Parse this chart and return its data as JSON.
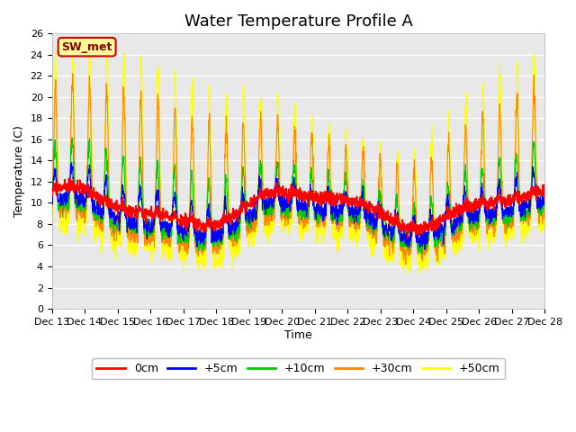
{
  "title": "Water Temperature Profile A",
  "xlabel": "Time",
  "ylabel": "Temperature (C)",
  "annotation": "SW_met",
  "ylim": [
    0,
    26
  ],
  "xlim_days": [
    13,
    28
  ],
  "yticks": [
    0,
    2,
    4,
    6,
    8,
    10,
    12,
    14,
    16,
    18,
    20,
    22,
    24,
    26
  ],
  "xtick_labels": [
    "Dec 13",
    "Dec 14",
    "Dec 15",
    "Dec 16",
    "Dec 17",
    "Dec 18",
    "Dec 19",
    "Dec 20",
    "Dec 21",
    "Dec 22",
    "Dec 23",
    "Dec 24",
    "Dec 25",
    "Dec 26",
    "Dec 27",
    "Dec 28"
  ],
  "colors": {
    "0cm": "#ff0000",
    "+5cm": "#0000ff",
    "+10cm": "#00cc00",
    "+30cm": "#ff8800",
    "+50cm": "#ffff00"
  },
  "legend_labels": [
    "0cm",
    "+5cm",
    "+10cm",
    "+30cm",
    "+50cm"
  ],
  "plot_bg_color": "#e8e8e8",
  "grid_color": "#ffffff",
  "title_fontsize": 13,
  "annotation_text_color": "#8b0000",
  "annotation_bg": "#ffff99",
  "annotation_border": "#cc0000"
}
